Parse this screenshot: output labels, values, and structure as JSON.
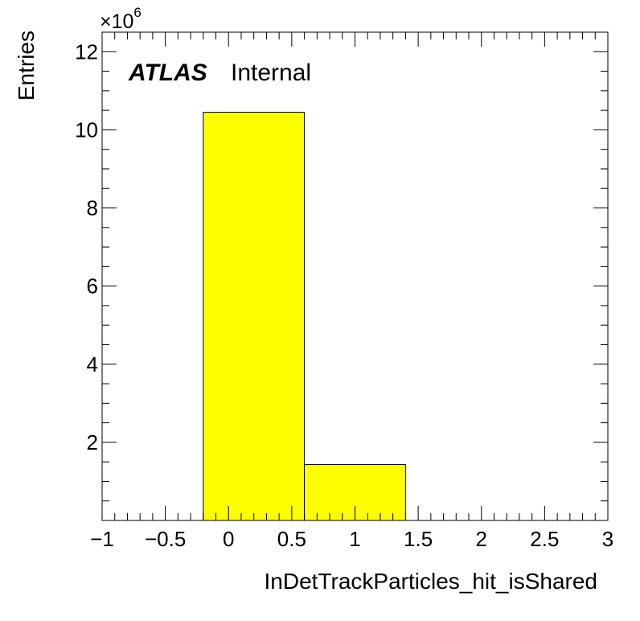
{
  "chart_data": {
    "type": "bar",
    "xlabel": "InDetTrackParticles_hit_isShared",
    "ylabel": "Entries",
    "y_multiplier": "×10",
    "y_multiplier_exponent": "6",
    "xlim": [
      -1,
      3
    ],
    "ylim": [
      0,
      12.5
    ],
    "y_scale_factor": 1000000,
    "x_major_ticks": [
      -1,
      -0.5,
      0,
      0.5,
      1,
      1.5,
      2,
      2.5,
      3
    ],
    "x_tick_labels": [
      "−1",
      "−0.5",
      "0",
      "0.5",
      "1",
      "1.5",
      "2",
      "2.5",
      "3"
    ],
    "x_minor_step": 0.1,
    "y_major_ticks": [
      2,
      4,
      6,
      8,
      10,
      12
    ],
    "y_tick_labels": [
      "2",
      "4",
      "6",
      "8",
      "10",
      "12"
    ],
    "y_minor_step": 0.5,
    "bins": [
      {
        "low": -0.2,
        "high": 0.6,
        "value": 10.45
      },
      {
        "low": 0.6,
        "high": 1.4,
        "value": 1.43
      }
    ],
    "fill_color": "#ffff00",
    "line_color": "#000000",
    "annotation": {
      "experiment": "ATLAS",
      "status": "Internal"
    }
  }
}
